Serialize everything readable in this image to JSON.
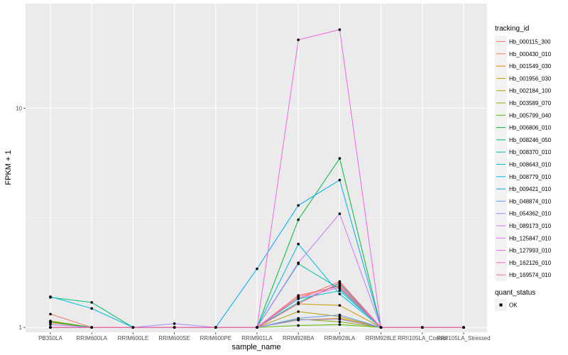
{
  "chart_data": {
    "type": "line",
    "xlabel": "sample_name",
    "ylabel": "FPKM + 1",
    "y_scale": "log10",
    "ylim": [
      0.95,
      30
    ],
    "y_ticks": [
      1,
      10
    ],
    "grid": true,
    "legend_position": "right",
    "categories": [
      "PB350LA",
      "RRIM600LA",
      "RRIM600LE",
      "RRIM600SE",
      "RRIM600PE",
      "RRIM901LA",
      "RRIM928BA",
      "RRIM928LA",
      "RRIM928LE",
      "RRII105LA_Control",
      "RRII105LA_Stressed"
    ],
    "color_legend_title": "tracking_id",
    "series": [
      {
        "name": "Hb_000115_300",
        "color": "#F8766D",
        "values": [
          1.15,
          1.0,
          1.0,
          1.0,
          1.0,
          1.0,
          1.35,
          1.62,
          1.0,
          1.0,
          1.0
        ]
      },
      {
        "name": "Hb_000430_010",
        "color": "#EE8042",
        "values": [
          1.05,
          1.0,
          1.0,
          1.0,
          1.0,
          1.0,
          1.38,
          1.55,
          1.0,
          1.0,
          1.0
        ]
      },
      {
        "name": "Hb_001549_030",
        "color": "#DE8C00",
        "values": [
          1.06,
          1.0,
          1.0,
          1.0,
          1.0,
          1.0,
          1.08,
          1.1,
          1.0,
          1.0,
          1.0
        ]
      },
      {
        "name": "Hb_001956_030",
        "color": "#C99800",
        "values": [
          1.0,
          1.0,
          1.0,
          1.0,
          1.0,
          1.0,
          1.28,
          1.26,
          1.0,
          1.0,
          1.0
        ]
      },
      {
        "name": "Hb_002184_100",
        "color": "#AFA100",
        "values": [
          1.07,
          1.0,
          1.0,
          1.0,
          1.0,
          1.0,
          1.18,
          1.12,
          1.0,
          1.0,
          1.0
        ]
      },
      {
        "name": "Hb_003589_070",
        "color": "#8DAB00",
        "values": [
          1.0,
          1.0,
          1.0,
          1.0,
          1.0,
          1.0,
          1.09,
          1.06,
          1.0,
          1.0,
          1.0
        ]
      },
      {
        "name": "Hb_005799_040",
        "color": "#5BB300",
        "values": [
          1.0,
          1.0,
          1.0,
          1.0,
          1.0,
          1.0,
          1.02,
          1.03,
          1.0,
          1.0,
          1.0
        ]
      },
      {
        "name": "Hb_006806_010",
        "color": "#00BA38",
        "values": [
          1.06,
          1.0,
          1.0,
          1.0,
          1.0,
          1.0,
          3.1,
          5.9,
          1.0,
          1.0,
          1.0
        ]
      },
      {
        "name": "Hb_008246_050",
        "color": "#00BF74",
        "values": [
          1.37,
          1.3,
          1.0,
          1.0,
          1.0,
          1.0,
          1.3,
          1.58,
          1.0,
          1.0,
          1.0
        ]
      },
      {
        "name": "Hb_008370_010",
        "color": "#00C09F",
        "values": [
          1.0,
          1.0,
          1.0,
          1.0,
          1.0,
          1.0,
          1.95,
          1.5,
          1.0,
          1.0,
          1.0
        ]
      },
      {
        "name": "Hb_008643_010",
        "color": "#00BFC4",
        "values": [
          1.0,
          1.0,
          1.0,
          1.0,
          1.0,
          1.0,
          1.35,
          1.47,
          1.0,
          1.0,
          1.0
        ]
      },
      {
        "name": "Hb_008779_010",
        "color": "#00B8E7",
        "values": [
          1.38,
          1.22,
          1.0,
          1.0,
          1.0,
          1.0,
          2.4,
          1.42,
          1.0,
          1.0,
          1.0
        ]
      },
      {
        "name": "Hb_009421_010",
        "color": "#00A9FF",
        "values": [
          1.0,
          1.0,
          1.0,
          1.0,
          1.0,
          1.85,
          3.6,
          4.7,
          1.0,
          1.0,
          1.0
        ]
      },
      {
        "name": "Hb_048874_010",
        "color": "#619CFF",
        "values": [
          1.0,
          1.0,
          1.0,
          1.0,
          1.0,
          1.0,
          1.1,
          1.14,
          1.0,
          1.0,
          1.0
        ]
      },
      {
        "name": "Hb_054362_010",
        "color": "#9F8CFF",
        "values": [
          1.03,
          1.0,
          1.0,
          1.04,
          1.0,
          1.0,
          1.08,
          1.09,
          1.0,
          1.0,
          1.0
        ]
      },
      {
        "name": "Hb_089173_010",
        "color": "#C77CFF",
        "values": [
          1.0,
          1.0,
          1.0,
          1.0,
          1.0,
          1.0,
          1.97,
          3.3,
          1.0,
          1.0,
          1.0
        ]
      },
      {
        "name": "Hb_125847_010",
        "color": "#E36EF6",
        "values": [
          1.0,
          1.0,
          1.0,
          1.0,
          1.0,
          1.0,
          1.36,
          1.52,
          1.0,
          1.0,
          1.0
        ]
      },
      {
        "name": "Hb_127993_010",
        "color": "#F564E3",
        "values": [
          1.0,
          1.0,
          1.0,
          1.0,
          1.0,
          1.0,
          20.5,
          22.8,
          1.0,
          1.0,
          1.0
        ]
      },
      {
        "name": "Hb_162126_010",
        "color": "#FF61C3",
        "values": [
          1.0,
          1.0,
          1.0,
          1.0,
          1.0,
          1.0,
          1.28,
          1.6,
          1.0,
          1.0,
          1.0
        ]
      },
      {
        "name": "Hb_169574_010",
        "color": "#FF6C91",
        "values": [
          1.0,
          1.0,
          1.0,
          1.0,
          1.0,
          1.0,
          1.4,
          1.54,
          1.0,
          1.0,
          1.0
        ]
      }
    ],
    "shape_legend_title": "quant_status",
    "shape_legend_items": [
      "OK"
    ]
  }
}
